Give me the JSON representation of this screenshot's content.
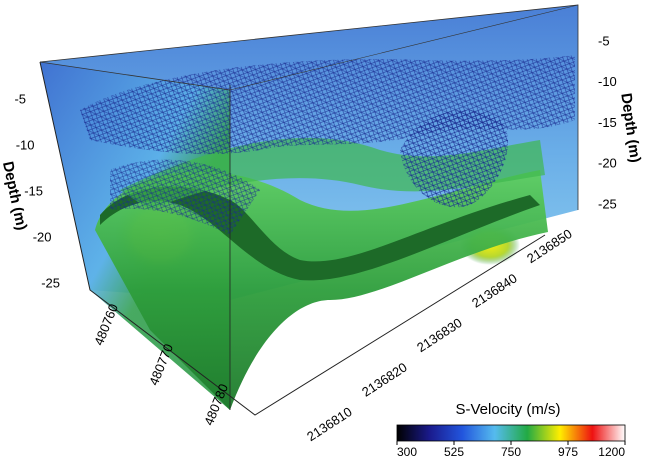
{
  "chart_data": {
    "type": "volume",
    "depth_axes": [
      {
        "label": "Depth (m)",
        "ticks": [
          -5,
          -10,
          -15,
          -20,
          -25
        ]
      },
      {
        "label": "Depth (m)",
        "ticks": [
          -5,
          -10,
          -15,
          -20,
          -25
        ]
      }
    ],
    "x_axis": {
      "ticks": [
        480760,
        480770,
        480780
      ]
    },
    "y_axis": {
      "ticks": [
        2136810,
        2136820,
        2136830,
        2136840,
        2136850
      ]
    },
    "colorbar": {
      "title": "S-Velocity (m/s)",
      "lim": [
        300,
        1200
      ],
      "ticks": [
        300,
        525,
        750,
        975,
        1200
      ],
      "colormap": [
        "#000000",
        "#1a1a8c",
        "#2255dd",
        "#55bbee",
        "#22aa44",
        "#ffee00",
        "#ee1111",
        "#ffffff"
      ]
    }
  }
}
